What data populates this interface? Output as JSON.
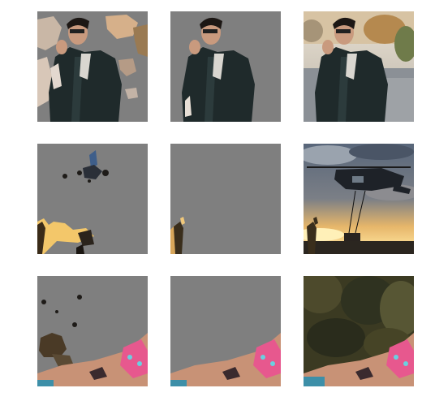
{
  "figure": {
    "rows": [
      {
        "subject": "man-leather-jacket",
        "tiles": [
          {
            "variant": "partial-mask"
          },
          {
            "variant": "subject-mask"
          },
          {
            "variant": "original"
          }
        ]
      },
      {
        "subject": "helicopter-sunset",
        "tiles": [
          {
            "variant": "partial-mask"
          },
          {
            "variant": "subject-mask"
          },
          {
            "variant": "original"
          }
        ]
      },
      {
        "subject": "woman-bikini-pool",
        "tiles": [
          {
            "variant": "partial-mask"
          },
          {
            "variant": "subject-mask"
          },
          {
            "variant": "original"
          }
        ]
      }
    ]
  },
  "colors": {
    "mask_gray": "#7f7f7f",
    "background": "#ffffff"
  }
}
